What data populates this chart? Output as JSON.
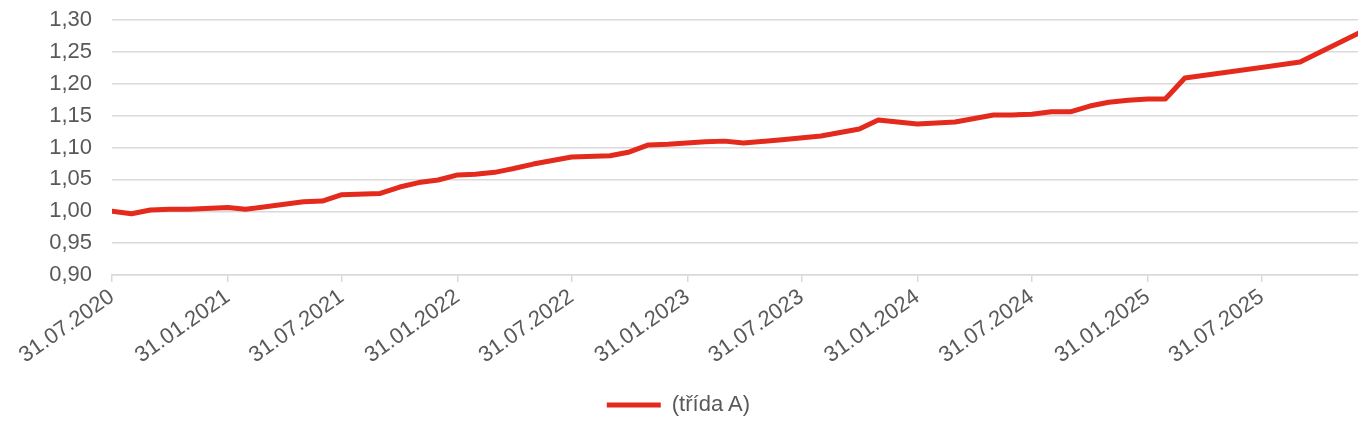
{
  "chart_data": {
    "type": "line",
    "x": [
      "2020-07-31",
      "2020-08-31",
      "2020-09-30",
      "2020-10-31",
      "2020-11-30",
      "2021-01-31",
      "2021-02-28",
      "2021-05-31",
      "2021-06-30",
      "2021-07-31",
      "2021-09-30",
      "2021-10-31",
      "2021-11-30",
      "2021-12-31",
      "2022-01-31",
      "2022-02-28",
      "2022-03-31",
      "2022-04-30",
      "2022-05-31",
      "2022-07-31",
      "2022-09-30",
      "2022-10-31",
      "2022-11-30",
      "2022-12-31",
      "2023-02-28",
      "2023-03-31",
      "2023-04-30",
      "2023-06-30",
      "2023-08-31",
      "2023-10-31",
      "2023-11-30",
      "2024-01-31",
      "2024-03-31",
      "2024-05-31",
      "2024-06-30",
      "2024-07-31",
      "2024-08-31",
      "2024-09-30",
      "2024-10-31",
      "2024-11-30",
      "2024-12-31",
      "2025-01-31",
      "2025-02-28",
      "2025-03-31",
      "2025-09-30",
      "2025-12-31"
    ],
    "series": [
      {
        "name": "(třída A)",
        "color": "#e42a1c",
        "values": [
          1.0,
          0.996,
          1.002,
          1.003,
          1.003,
          1.006,
          1.003,
          1.015,
          1.016,
          1.026,
          1.028,
          1.038,
          1.045,
          1.049,
          1.057,
          1.058,
          1.061,
          1.067,
          1.074,
          1.085,
          1.087,
          1.093,
          1.104,
          1.105,
          1.109,
          1.11,
          1.107,
          1.112,
          1.118,
          1.129,
          1.143,
          1.137,
          1.14,
          1.151,
          1.151,
          1.152,
          1.156,
          1.156,
          1.165,
          1.171,
          1.174,
          1.176,
          1.176,
          1.209,
          1.234,
          1.279
        ]
      }
    ],
    "xlim": [
      "2020-07-31",
      "2025-12-31"
    ],
    "xticks": [
      {
        "value": "2020-07-31",
        "label": "31.07.2020"
      },
      {
        "value": "2021-01-31",
        "label": "31.01.2021"
      },
      {
        "value": "2021-07-31",
        "label": "31.07.2021"
      },
      {
        "value": "2022-01-31",
        "label": "31.01.2022"
      },
      {
        "value": "2022-07-31",
        "label": "31.07.2022"
      },
      {
        "value": "2023-01-31",
        "label": "31.01.2023"
      },
      {
        "value": "2023-07-31",
        "label": "31.07.2023"
      },
      {
        "value": "2024-01-31",
        "label": "31.01.2024"
      },
      {
        "value": "2024-07-31",
        "label": "31.07.2024"
      },
      {
        "value": "2025-01-31",
        "label": "31.01.2025"
      },
      {
        "value": "2025-07-31",
        "label": "31.07.2025"
      }
    ],
    "ylim": [
      0.9,
      1.3
    ],
    "yticks": [
      {
        "value": 0.9,
        "label": "0,90"
      },
      {
        "value": 0.95,
        "label": "0,95"
      },
      {
        "value": 1.0,
        "label": "1,00"
      },
      {
        "value": 1.05,
        "label": "1,05"
      },
      {
        "value": 1.1,
        "label": "1,10"
      },
      {
        "value": 1.15,
        "label": "1,15"
      },
      {
        "value": 1.2,
        "label": "1,20"
      },
      {
        "value": 1.25,
        "label": "1,25"
      },
      {
        "value": 1.3,
        "label": "1,30"
      }
    ],
    "grid": "y",
    "legend": "bottom",
    "marker": "none",
    "line_style": "solid"
  }
}
